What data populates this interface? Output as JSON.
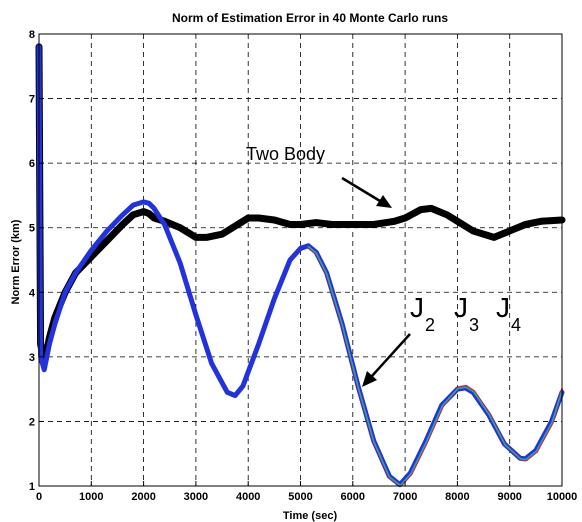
{
  "chart_data": {
    "type": "line",
    "title": "Norm of Estimation Error in 40 Monte Carlo runs",
    "xlabel": "Time (sec)",
    "ylabel": "Norm Error (km)",
    "xlim": [
      0,
      10000
    ],
    "ylim": [
      1,
      8
    ],
    "xticks": [
      0,
      1000,
      2000,
      3000,
      4000,
      5000,
      6000,
      7000,
      8000,
      9000,
      10000
    ],
    "yticks": [
      1,
      2,
      3,
      4,
      5,
      6,
      7,
      8
    ],
    "grid": true,
    "colors": {
      "two_body": "#000000",
      "j2": "#2233dd",
      "j3": "#cc2233",
      "j4": "#22aaaa"
    },
    "annotations": {
      "two_body": "Two Body",
      "j_label": "J",
      "j_subscripts": [
        "2",
        "3",
        "4"
      ]
    },
    "series": [
      {
        "x": [
          0,
          30,
          100,
          200,
          300,
          500,
          700,
          1000,
          1300,
          1600,
          1800,
          2000,
          2100,
          2200,
          2400,
          2700,
          3000,
          3200,
          3500,
          3800,
          4000,
          4200,
          4500,
          4800,
          5000,
          5300,
          5600,
          6000,
          6400,
          6800,
          7000,
          7300,
          7500,
          7800,
          8000,
          8300,
          8700,
          9000,
          9300,
          9600,
          10000
        ],
        "values": [
          7.8,
          3.2,
          2.9,
          3.3,
          3.6,
          4.0,
          4.3,
          4.55,
          4.8,
          5.05,
          5.2,
          5.25,
          5.22,
          5.15,
          5.1,
          5.0,
          4.85,
          4.85,
          4.9,
          5.05,
          5.15,
          5.15,
          5.12,
          5.05,
          5.05,
          5.08,
          5.05,
          5.05,
          5.05,
          5.1,
          5.15,
          5.28,
          5.3,
          5.2,
          5.1,
          4.95,
          4.85,
          4.95,
          5.05,
          5.1,
          5.12
        ]
      },
      {
        "x": [
          0,
          30,
          100,
          200,
          300,
          500,
          700,
          1000,
          1300,
          1600,
          1800,
          2000,
          2100,
          2200,
          2400,
          2700,
          3000,
          3300,
          3600,
          3750,
          3900,
          4200,
          4500,
          4800,
          5000,
          5150,
          5300,
          5500,
          5800,
          6100,
          6400,
          6700,
          6900,
          7100,
          7400,
          7700,
          8000,
          8150,
          8300,
          8600,
          8900,
          9200,
          9300,
          9500,
          9800,
          10000
        ],
        "values": [
          7.8,
          3.0,
          2.8,
          3.2,
          3.5,
          4.0,
          4.3,
          4.65,
          4.95,
          5.2,
          5.35,
          5.4,
          5.38,
          5.3,
          5.05,
          4.45,
          3.65,
          2.9,
          2.45,
          2.4,
          2.55,
          3.2,
          3.9,
          4.5,
          4.68,
          4.72,
          4.62,
          4.3,
          3.5,
          2.55,
          1.7,
          1.15,
          1.02,
          1.2,
          1.7,
          2.25,
          2.5,
          2.52,
          2.45,
          2.1,
          1.65,
          1.43,
          1.42,
          1.55,
          2.0,
          2.45
        ]
      },
      {
        "x": [
          5150,
          5300,
          5500,
          5800,
          6100,
          6400,
          6700,
          6920,
          7120,
          7420,
          7720,
          8020,
          8170,
          8320,
          8620,
          8920,
          9220,
          9320,
          9520,
          9820,
          10000
        ],
        "values": [
          4.7,
          4.6,
          4.28,
          3.48,
          2.53,
          1.68,
          1.13,
          1.0,
          1.18,
          1.68,
          2.23,
          2.53,
          2.55,
          2.47,
          2.1,
          1.63,
          1.41,
          1.4,
          1.53,
          1.98,
          2.5
        ]
      },
      {
        "x": [
          5150,
          5300,
          5500,
          5800,
          6100,
          6400,
          6700,
          6910,
          7110,
          7410,
          7710,
          8010,
          8160,
          8310,
          8610,
          8910,
          9210,
          9310,
          9510,
          9810,
          10000
        ],
        "values": [
          4.71,
          4.61,
          4.29,
          3.49,
          2.54,
          1.69,
          1.14,
          1.01,
          1.19,
          1.69,
          2.24,
          2.51,
          2.53,
          2.46,
          2.1,
          1.64,
          1.42,
          1.41,
          1.54,
          1.99,
          2.47
        ]
      }
    ]
  }
}
